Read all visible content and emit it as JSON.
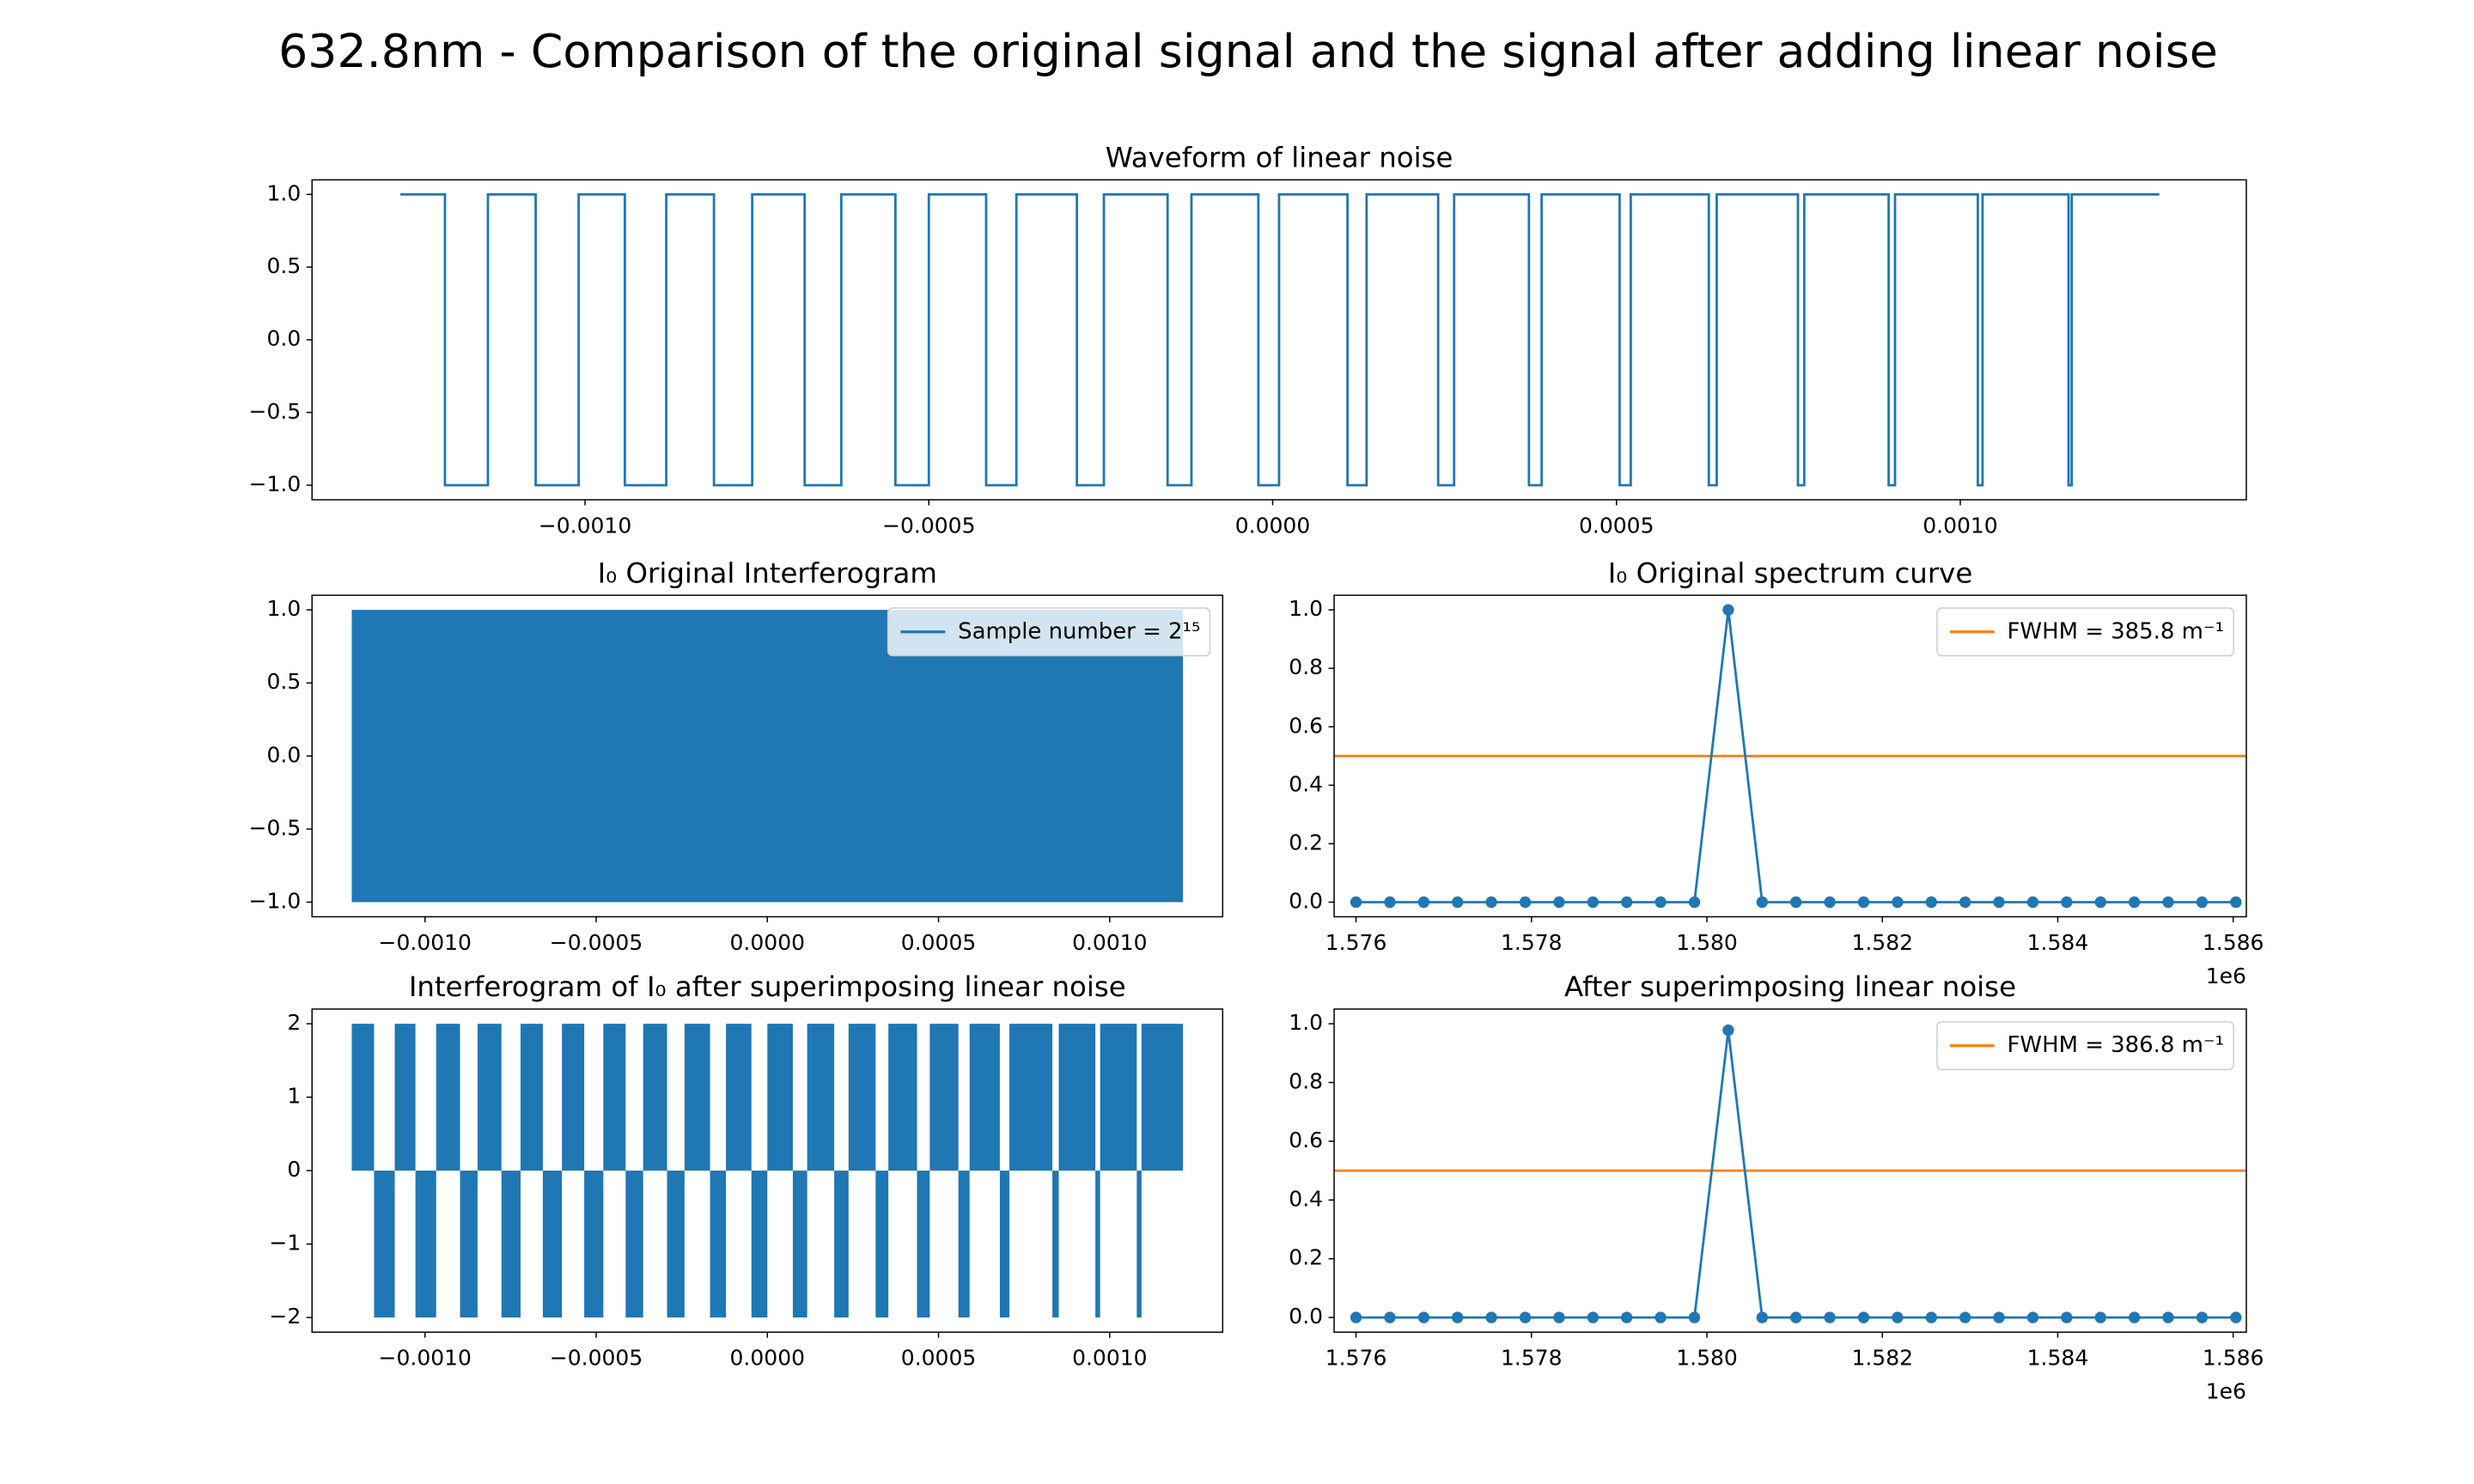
{
  "title": "632.8nm - Comparison of the original signal and the signal after adding linear noise",
  "chart_data": [
    {
      "type": "step",
      "title": "Waveform of linear noise",
      "color": "#1f77b4",
      "x": [
        -0.0012685,
        -0.0012037,
        -0.0011412,
        -0.0010718,
        -0.0010093,
        -0.0009421,
        -0.0008819,
        -0.0008125,
        -0.0007569,
        -0.0006806,
        -0.0006273,
        -0.0005486,
        -0.0005,
        -0.0004167,
        -0.0003727,
        -0.0002847,
        -0.0002454,
        -0.0001528,
        -0.0001181,
        -2.08e-05,
        9.3e-06,
        0.0001088,
        0.0001366,
        0.0002407,
        0.0002639,
        0.0003727,
        0.0003912,
        0.0005046,
        0.0005208,
        0.0006343,
        0.0006458,
        0.0007639,
        0.0007731,
        0.0008958,
        0.0009051,
        0.0010255,
        0.0010324,
        0.0011574,
        0.001162,
        0.0012894
      ],
      "values": [
        1,
        -1,
        1,
        -1,
        1,
        -1,
        1,
        -1,
        1,
        -1,
        1,
        -1,
        1,
        -1,
        1,
        -1,
        1,
        -1,
        1,
        -1,
        1,
        -1,
        1,
        -1,
        1,
        -1,
        1,
        -1,
        1,
        -1,
        1,
        -1,
        1,
        -1,
        1,
        -1,
        1,
        -1,
        1,
        1
      ],
      "xlim": [
        -0.001397,
        0.001416
      ],
      "ylim": [
        -1.1,
        1.1
      ],
      "xticks": [
        {
          "value": -0.001,
          "label": "−0.0010"
        },
        {
          "value": -0.0005,
          "label": "−0.0005"
        },
        {
          "value": 0,
          "label": "0.0000"
        },
        {
          "value": 0.0005,
          "label": "0.0005"
        },
        {
          "value": 0.001,
          "label": "0.0010"
        }
      ],
      "yticks": [
        {
          "value": -1,
          "label": "−1.0"
        },
        {
          "value": -0.5,
          "label": "−0.5"
        },
        {
          "value": 0,
          "label": "0.0"
        },
        0.5,
        {
          "value": 1,
          "label": "1.0"
        }
      ]
    },
    {
      "type": "fill",
      "title": "I₀ Original Interferogram",
      "legend": "upper right",
      "series": [
        {
          "name": "Sample number = 2¹⁵",
          "color": "#1f77b4",
          "bins": [
            -0.001214,
            0.001214
          ],
          "lower": [
            -1
          ],
          "upper": [
            1
          ]
        }
      ],
      "xlim": [
        -0.00133,
        0.00133
      ],
      "ylim": [
        -1.1,
        1.1
      ],
      "xticks": [
        {
          "value": -0.001,
          "label": "−0.0010"
        },
        {
          "value": -0.0005,
          "label": "−0.0005"
        },
        {
          "value": 0,
          "label": "0.0000"
        },
        {
          "value": 0.0005,
          "label": "0.0005"
        },
        {
          "value": 0.001,
          "label": "0.0010"
        }
      ],
      "yticks": [
        {
          "value": -1,
          "label": "−1.0"
        },
        {
          "value": -0.5,
          "label": "−0.5"
        },
        {
          "value": 0,
          "label": "0.0"
        },
        0.5,
        {
          "value": 1,
          "label": "1.0"
        }
      ]
    },
    {
      "type": "line",
      "title": "I₀ Original spectrum curve",
      "legend": "upper right",
      "series": [
        {
          "color": "#1f77b4",
          "marker": "o",
          "x": [
            1576000,
            1576386,
            1576772,
            1577157,
            1577543,
            1577929,
            1578315,
            1578701,
            1579086,
            1579472,
            1579858,
            1580244,
            1580630,
            1581015,
            1581401,
            1581787,
            1582173,
            1582559,
            1582944,
            1583330,
            1583716,
            1584102,
            1584488,
            1584873,
            1585259,
            1585645,
            1586031
          ],
          "values": [
            0,
            0,
            0,
            0,
            0,
            0,
            0,
            0,
            0,
            0,
            0,
            1,
            0,
            0,
            0,
            0,
            0,
            0,
            0,
            0,
            0,
            0,
            0,
            0,
            0,
            0,
            0
          ]
        }
      ],
      "hlines": [
        {
          "name": "FWHM = 385.8 m⁻¹",
          "color": "#ff7f0e",
          "value": 0.5
        }
      ],
      "xlim": [
        1575750,
        1586150
      ],
      "ylim": [
        -0.05,
        1.05
      ],
      "x_offset_label": "1e6",
      "xticks": [
        {
          "value": 1576000,
          "label": "1.576"
        },
        {
          "value": 1578000,
          "label": "1.578"
        },
        {
          "value": 1580000,
          "label": "1.580"
        },
        {
          "value": 1582000,
          "label": "1.582"
        },
        {
          "value": 1584000,
          "label": "1.584"
        },
        {
          "value": 1586000,
          "label": "1.586"
        }
      ],
      "yticks": [
        {
          "value": 0,
          "label": "0.0"
        },
        0.2,
        0.4,
        0.6,
        0.8,
        {
          "value": 1,
          "label": "1.0"
        }
      ]
    },
    {
      "type": "fill",
      "title": "Interferogram of I₀ after superimposing linear noise",
      "series": [
        {
          "color": "#1f77b4",
          "bins": [
            -0.001214,
            -0.0011488,
            -0.0010884,
            -0.0010279,
            -0.0009674,
            -0.0008977,
            -0.0008465,
            -0.0007767,
            -0.0007209,
            -0.0006558,
            -0.0006,
            -0.0005349,
            -0.0004791,
            -0.000414,
            -0.0003628,
            -0.000293,
            -0.0002419,
            -0.0001674,
            -0.0001209,
            -4.65e-05,
            0,
            7.44e-05,
            0.0001163,
            0.0001953,
            0.0002372,
            0.0003163,
            0.0003535,
            0.0004372,
            0.0004744,
            0.0005581,
            0.0005907,
            0.0006791,
            0.000707,
            0.0008326,
            0.0008512,
            0.0009581,
            0.0009721,
            0.0010791,
            0.001093,
            0.001214
          ],
          "lower": [
            0,
            -2,
            0,
            -2,
            0,
            -2,
            0,
            -2,
            0,
            -2,
            0,
            -2,
            0,
            -2,
            0,
            -2,
            0,
            -2,
            0,
            -2,
            0,
            -2,
            0,
            -2,
            0,
            -2,
            0,
            -2,
            0,
            -2,
            0,
            -2,
            0,
            -2,
            0,
            -2,
            0,
            -2,
            0
          ],
          "upper": [
            2,
            0,
            2,
            0,
            2,
            0,
            2,
            0,
            2,
            0,
            2,
            0,
            2,
            0,
            2,
            0,
            2,
            0,
            2,
            0,
            2,
            0,
            2,
            0,
            2,
            0,
            2,
            0,
            2,
            0,
            2,
            0,
            2,
            0,
            2,
            0,
            2,
            0,
            2
          ]
        }
      ],
      "xlim": [
        -0.00133,
        0.00133
      ],
      "ylim": [
        -2.2,
        2.2
      ],
      "xticks": [
        {
          "value": -0.001,
          "label": "−0.0010"
        },
        {
          "value": -0.0005,
          "label": "−0.0005"
        },
        {
          "value": 0,
          "label": "0.0000"
        },
        {
          "value": 0.0005,
          "label": "0.0005"
        },
        {
          "value": 0.001,
          "label": "0.0010"
        }
      ],
      "yticks": [
        {
          "value": -2,
          "label": "−2"
        },
        {
          "value": -1,
          "label": "−1"
        },
        0,
        1,
        2
      ]
    },
    {
      "type": "line",
      "title": "After superimposing linear noise",
      "legend": "upper right",
      "series": [
        {
          "color": "#1f77b4",
          "marker": "o",
          "x": [
            1576000,
            1576386,
            1576772,
            1577157,
            1577543,
            1577929,
            1578315,
            1578701,
            1579086,
            1579472,
            1579858,
            1580244,
            1580630,
            1581015,
            1581401,
            1581787,
            1582173,
            1582559,
            1582944,
            1583330,
            1583716,
            1584102,
            1584488,
            1584873,
            1585259,
            1585645,
            1586031
          ],
          "values": [
            0,
            0,
            0,
            0,
            0,
            0,
            0,
            0,
            0,
            0,
            0,
            0.978,
            0,
            0,
            0,
            0,
            0,
            0,
            0,
            0,
            0,
            0,
            0,
            0,
            0,
            0,
            0
          ]
        }
      ],
      "hlines": [
        {
          "name": "FWHM = 386.8 m⁻¹",
          "color": "#ff7f0e",
          "value": 0.5
        }
      ],
      "xlim": [
        1575750,
        1586150
      ],
      "ylim": [
        -0.05,
        1.05
      ],
      "x_offset_label": "1e6",
      "xticks": [
        {
          "value": 1576000,
          "label": "1.576"
        },
        {
          "value": 1578000,
          "label": "1.578"
        },
        {
          "value": 1580000,
          "label": "1.580"
        },
        {
          "value": 1582000,
          "label": "1.582"
        },
        {
          "value": 1584000,
          "label": "1.584"
        },
        {
          "value": 1586000,
          "label": "1.586"
        }
      ],
      "yticks": [
        {
          "value": 0,
          "label": "0.0"
        },
        0.2,
        0.4,
        0.6,
        0.8,
        {
          "value": 1,
          "label": "1.0"
        }
      ]
    }
  ]
}
